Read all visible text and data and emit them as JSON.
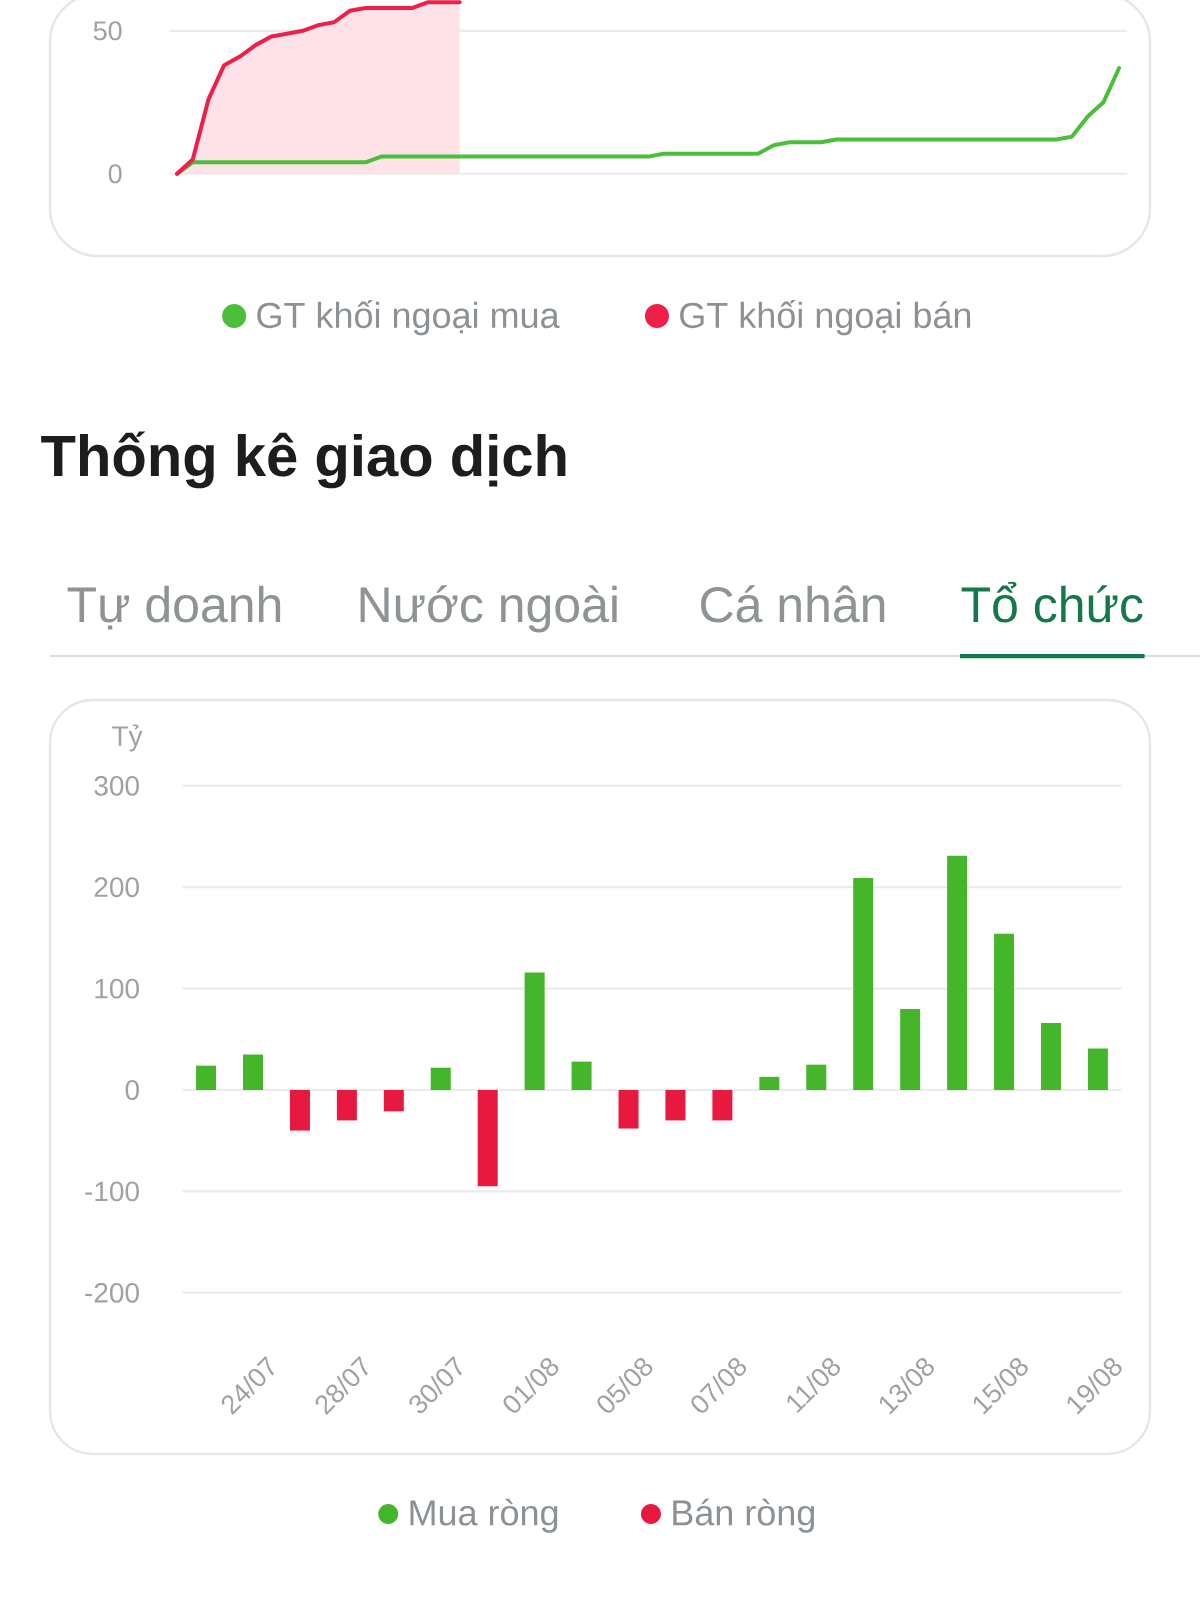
{
  "chart_data": [
    {
      "type": "area",
      "categories": [
        null,
        null,
        null,
        null,
        null,
        null,
        null,
        null,
        null,
        null,
        null,
        null,
        null,
        null,
        null,
        null,
        null,
        null,
        null,
        null,
        null,
        null,
        null,
        null,
        null,
        null,
        null,
        null,
        null,
        null,
        null,
        null,
        null,
        null,
        null,
        null,
        null,
        null,
        null,
        null,
        null,
        null,
        null,
        null,
        null,
        null,
        null,
        null,
        null,
        null,
        null,
        null,
        null,
        null,
        null,
        null,
        null,
        null,
        null,
        null,
        null
      ],
      "series": [
        {
          "name": "GT khối ngoại mua",
          "type": "line",
          "color": "#4cbf3a",
          "values": [
            0,
            4,
            4,
            4,
            4,
            4,
            4,
            4,
            4,
            4,
            4,
            4,
            4,
            6,
            6,
            6,
            6,
            6,
            6,
            6,
            6,
            6,
            6,
            6,
            6,
            6,
            6,
            6,
            6,
            6,
            6,
            7,
            7,
            7,
            7,
            7,
            7,
            7,
            10,
            11,
            11,
            11,
            12,
            12,
            12,
            12,
            12,
            12,
            12,
            12,
            12,
            12,
            12,
            12,
            12,
            12,
            12,
            13,
            20,
            25,
            37
          ]
        },
        {
          "name": "GT khối ngoại bán",
          "color": "#ee2049",
          "values": [
            0,
            5,
            26,
            38,
            41,
            45,
            48,
            49,
            50,
            52,
            53,
            57,
            58,
            58,
            58,
            58,
            60,
            60,
            60,
            null,
            null,
            null,
            null,
            null,
            null,
            null,
            null,
            null,
            null,
            null,
            null,
            null,
            null,
            null,
            null,
            null,
            null,
            null,
            null,
            null,
            null,
            null,
            null,
            null,
            null,
            null,
            null,
            null,
            null,
            null,
            null,
            null,
            null,
            null,
            null,
            null,
            null,
            null,
            null,
            null,
            null
          ]
        }
      ],
      "ylim": [
        0,
        61
      ],
      "yticks": [
        0,
        50
      ],
      "grid": "y",
      "legend": "bottom",
      "tick_labels": "y"
    },
    {
      "type": "bar",
      "title": "Thống kê giao dịch",
      "ylabel": "Tỷ",
      "annotations": [
        "Tự doanh",
        "Nước ngoài",
        "Cá nhân",
        "Tổ chức"
      ],
      "categories": [
        null,
        "24/07",
        null,
        "28/07",
        null,
        "30/07",
        null,
        "01/08",
        null,
        "05/08",
        null,
        "07/08",
        null,
        "11/08",
        null,
        "13/08",
        null,
        "15/08",
        null,
        "19/08"
      ],
      "series": [
        {
          "name": "Mua ròng",
          "color": "#45b62b",
          "values": [
            24,
            35,
            null,
            null,
            null,
            22,
            null,
            116,
            28,
            null,
            null,
            null,
            13,
            25,
            209,
            80,
            231,
            154,
            66,
            41
          ]
        },
        {
          "name": "Bán ròng",
          "color": "#e8193f",
          "values": [
            null,
            null,
            -40,
            -30,
            -21,
            null,
            -95,
            null,
            null,
            -38,
            -30,
            -30,
            null,
            null,
            null,
            null,
            null,
            null,
            null,
            null
          ]
        }
      ],
      "ylim": [
        -200,
        300
      ],
      "yticks": [
        -200,
        -100,
        0,
        100,
        200,
        300
      ],
      "grid": "y",
      "legend": "bottom"
    }
  ]
}
